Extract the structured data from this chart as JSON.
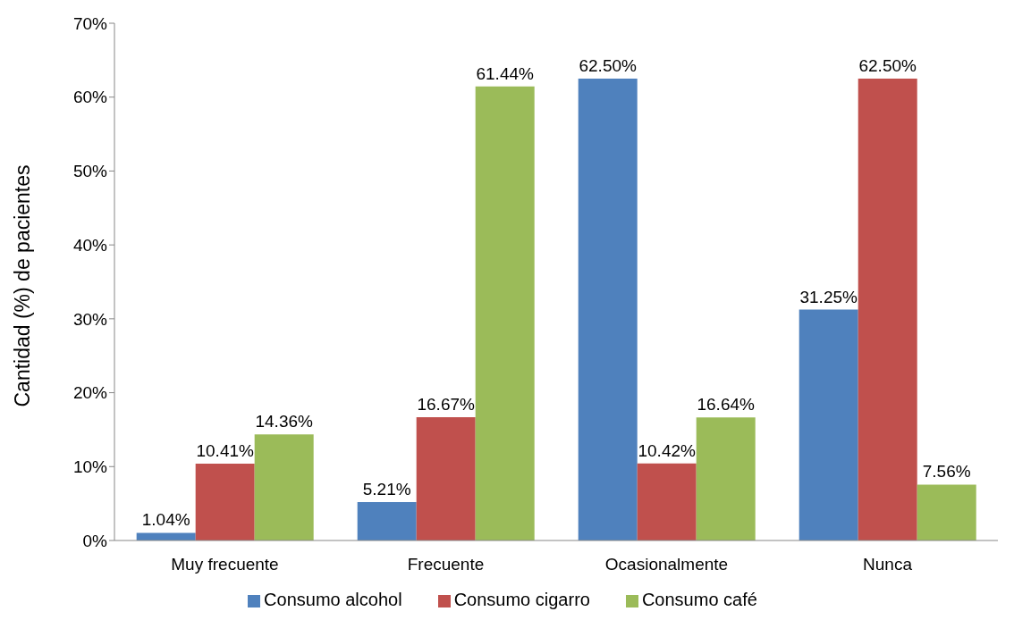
{
  "chart_data": {
    "type": "bar",
    "ylabel": "Cantidad (%) de pacientes",
    "categories": [
      "Muy frecuente",
      "Frecuente",
      "Ocasionalmente",
      "Nunca"
    ],
    "series": [
      {
        "name": "Consumo alcohol",
        "color": "#4f81bd",
        "values": [
          1.04,
          5.21,
          62.5,
          31.25
        ],
        "value_labels": [
          "1.04%",
          "5.21%",
          "62.50%",
          "31.25%"
        ]
      },
      {
        "name": "Consumo cigarro",
        "color": "#c0504d",
        "values": [
          10.41,
          16.67,
          10.42,
          62.5
        ],
        "value_labels": [
          "10.41%",
          "16.67%",
          "10.42%",
          "62.50%"
        ]
      },
      {
        "name": "Consumo café",
        "color": "#9bbb59",
        "values": [
          14.36,
          61.44,
          16.64,
          7.56
        ],
        "value_labels": [
          "14.36%",
          "61.44%",
          "16.64%",
          "7.56%"
        ]
      }
    ],
    "ylim": [
      0,
      70
    ],
    "yticks": [
      {
        "value": 0,
        "label": "0%"
      },
      {
        "value": 10,
        "label": "10%"
      },
      {
        "value": 20,
        "label": "20%"
      },
      {
        "value": 30,
        "label": "30%"
      },
      {
        "value": 40,
        "label": "40%"
      },
      {
        "value": 50,
        "label": "50%"
      },
      {
        "value": 60,
        "label": "60%"
      },
      {
        "value": 70,
        "label": "70%"
      }
    ],
    "grid": false,
    "legend": "bottom"
  }
}
